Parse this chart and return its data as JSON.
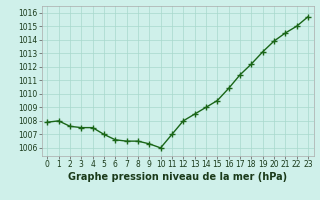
{
  "x": [
    0,
    1,
    2,
    3,
    4,
    5,
    6,
    7,
    8,
    9,
    10,
    11,
    12,
    13,
    14,
    15,
    16,
    17,
    18,
    19,
    20,
    21,
    22,
    23
  ],
  "y": [
    1007.9,
    1008.0,
    1007.6,
    1007.5,
    1007.5,
    1007.0,
    1006.6,
    1006.5,
    1006.5,
    1006.3,
    1006.0,
    1007.0,
    1008.0,
    1008.5,
    1009.0,
    1009.5,
    1010.4,
    1011.4,
    1012.2,
    1013.1,
    1013.9,
    1014.5,
    1015.0,
    1015.7
  ],
  "xlim": [
    -0.5,
    23.5
  ],
  "ylim": [
    1005.4,
    1016.5
  ],
  "yticks": [
    1006,
    1007,
    1008,
    1009,
    1010,
    1011,
    1012,
    1013,
    1014,
    1015,
    1016
  ],
  "xticks": [
    0,
    1,
    2,
    3,
    4,
    5,
    6,
    7,
    8,
    9,
    10,
    11,
    12,
    13,
    14,
    15,
    16,
    17,
    18,
    19,
    20,
    21,
    22,
    23
  ],
  "xlabel": "Graphe pression niveau de la mer (hPa)",
  "line_color": "#1a6618",
  "marker": "+",
  "bg_color": "#cff0ea",
  "grid_color": "#a8d8cc",
  "tick_label_fontsize": 5.5,
  "xlabel_fontsize": 7.0,
  "line_width": 1.0,
  "marker_size": 4,
  "marker_edge_width": 1.0
}
